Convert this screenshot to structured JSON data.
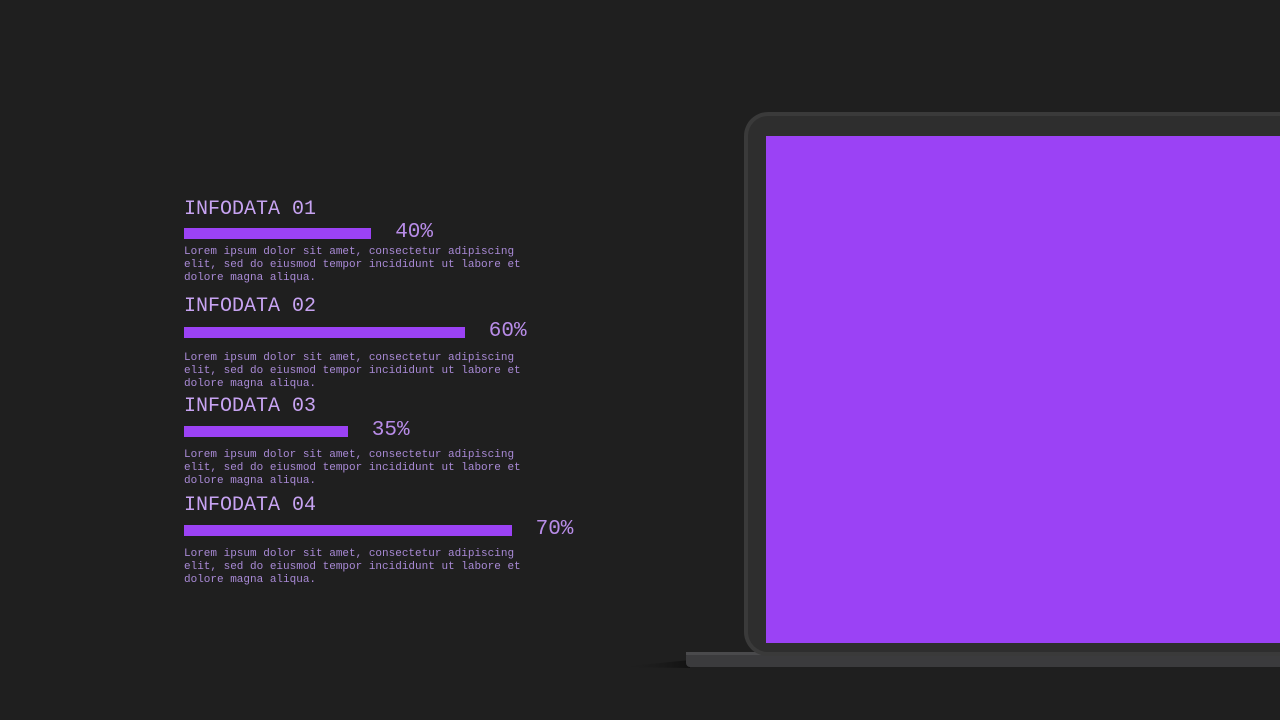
{
  "chart_data": {
    "type": "bar",
    "orientation": "horizontal",
    "categories": [
      "INFODATA 01",
      "INFODATA 02",
      "INFODATA 03",
      "INFODATA 04"
    ],
    "values": [
      40,
      60,
      35,
      70
    ],
    "value_labels": [
      "40%",
      "60%",
      "35%",
      "70%"
    ],
    "descriptions": [
      "Lorem ipsum dolor sit amet, consectetur adipiscing elit, sed do eiusmod tempor incididunt ut labore et dolore magna aliqua.",
      "Lorem ipsum dolor sit amet, consectetur adipiscing elit, sed do eiusmod tempor incididunt ut labore et dolore magna aliqua.",
      "Lorem ipsum dolor sit amet, consectetur adipiscing elit, sed do eiusmod tempor incididunt ut labore et dolore magna aliqua.",
      "Lorem ipsum dolor sit amet, consectetur adipiscing elit, sed do eiusmod tempor incididunt ut labore et dolore magna aliqua."
    ],
    "color": "#9b42f5",
    "xlim": [
      0,
      100
    ]
  }
}
